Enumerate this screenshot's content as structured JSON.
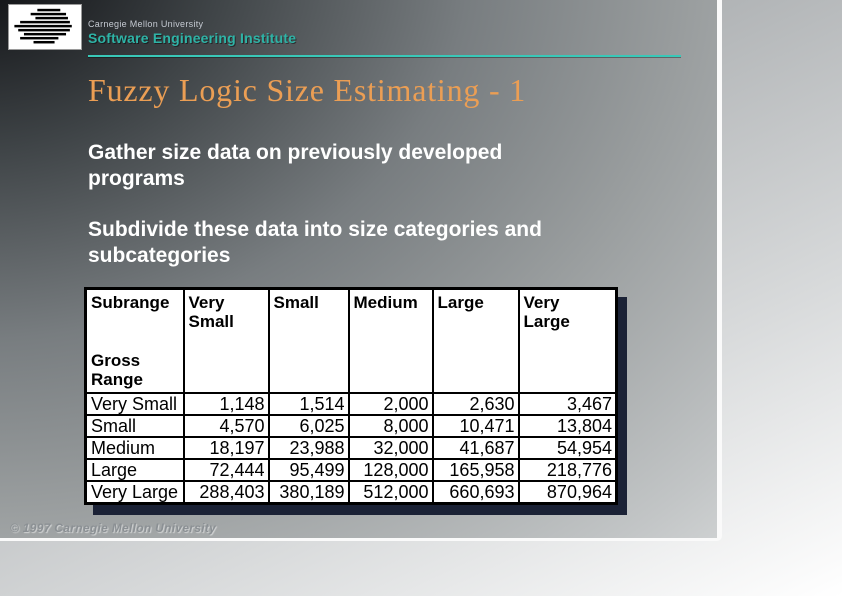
{
  "header": {
    "university_label": "Carnegie Mellon University",
    "institute_label": "Software Engineering Institute"
  },
  "title": "Fuzzy Logic Size Estimating - 1",
  "body": {
    "paragraph1": "Gather size data on previously developed\nprograms",
    "paragraph2": "Subdivide these data into size categories and\nsubcategories"
  },
  "table": {
    "header_corner": "Subrange",
    "row_header_label": "Gross\nRange",
    "columns": [
      "Very\nSmall",
      "Small",
      "Medium",
      "Large",
      "Very\nLarge"
    ],
    "rows": [
      {
        "label": "Very Small",
        "values": [
          "1,148",
          "1,514",
          "2,000",
          "2,630",
          "3,467"
        ]
      },
      {
        "label": "Small",
        "values": [
          "4,570",
          "6,025",
          "8,000",
          "10,471",
          "13,804"
        ]
      },
      {
        "label": "Medium",
        "values": [
          "18,197",
          "23,988",
          "32,000",
          "41,687",
          "54,954"
        ]
      },
      {
        "label": "Large",
        "values": [
          "72,444",
          "95,499",
          "128,000",
          "165,958",
          "218,776"
        ]
      },
      {
        "label": "Very Large",
        "values": [
          "288,403",
          "380,189",
          "512,000",
          "660,693",
          "870,964"
        ]
      }
    ]
  },
  "footer": {
    "copyright": "© 1997 Carnegie Mellon University"
  },
  "colors": {
    "accent_teal": "#39c8b8",
    "institute_teal": "#2eb3a6",
    "title_orange": "#eb9e54",
    "table_shadow_navy": "#1b2236",
    "body_text": "#ffffff"
  },
  "icons": {
    "logo": "cmu-sei-stripes-logo"
  }
}
